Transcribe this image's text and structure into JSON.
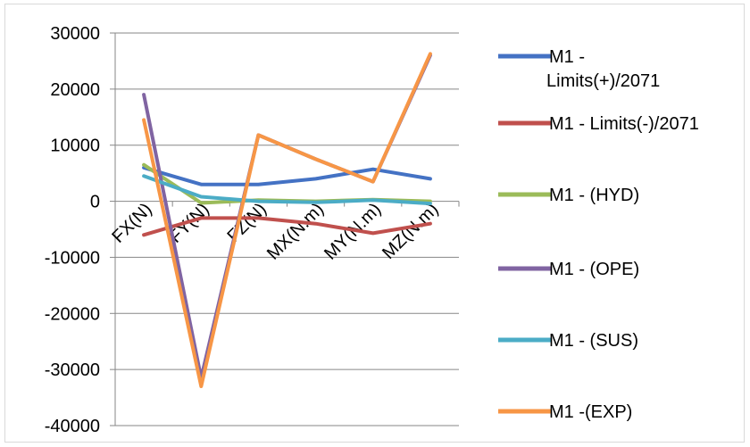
{
  "chart_data": {
    "type": "line",
    "categories": [
      "FX(N)",
      "FY(N)",
      "FZ(N)",
      "MX(N.m)",
      "MY(N.m)",
      "MZ(N.m)"
    ],
    "ylim": [
      -40000,
      30000
    ],
    "yticks": [
      30000,
      20000,
      10000,
      0,
      -10000,
      -20000,
      -30000,
      -40000
    ],
    "grid": true,
    "legend_position": "right",
    "series": [
      {
        "name": "M1 - Limits(+)/2071",
        "legend_lines": [
          "M1 -",
          "Limits(+)/2071"
        ],
        "color": "#4472c4",
        "values": [
          6000,
          3000,
          3000,
          4000,
          5700,
          4000
        ]
      },
      {
        "name": "M1 - Limits(-)/2071",
        "legend_lines": [
          "M1 - Limits(-)/2071"
        ],
        "color": "#c0504d",
        "values": [
          -6000,
          -3000,
          -3000,
          -4000,
          -5700,
          -4000
        ]
      },
      {
        "name": "M1 - (HYD)",
        "legend_lines": [
          "M1 - (HYD)"
        ],
        "color": "#9bbb59",
        "values": [
          6500,
          -300,
          200,
          0,
          300,
          0
        ]
      },
      {
        "name": "M1 - (OPE)",
        "legend_lines": [
          "M1 - (OPE)"
        ],
        "color": "#8064a2",
        "values": [
          19000,
          -31500,
          11800,
          7500,
          3500,
          26000
        ]
      },
      {
        "name": "M1 - (SUS)",
        "legend_lines": [
          "M1 - (SUS)"
        ],
        "color": "#4bacc6",
        "values": [
          4500,
          800,
          0,
          -200,
          200,
          -400
        ]
      },
      {
        "name": "M1 -(EXP)",
        "legend_lines": [
          "M1 -(EXP)"
        ],
        "color": "#f79646",
        "values": [
          14500,
          -33000,
          11800,
          7500,
          3500,
          26300
        ]
      }
    ]
  }
}
